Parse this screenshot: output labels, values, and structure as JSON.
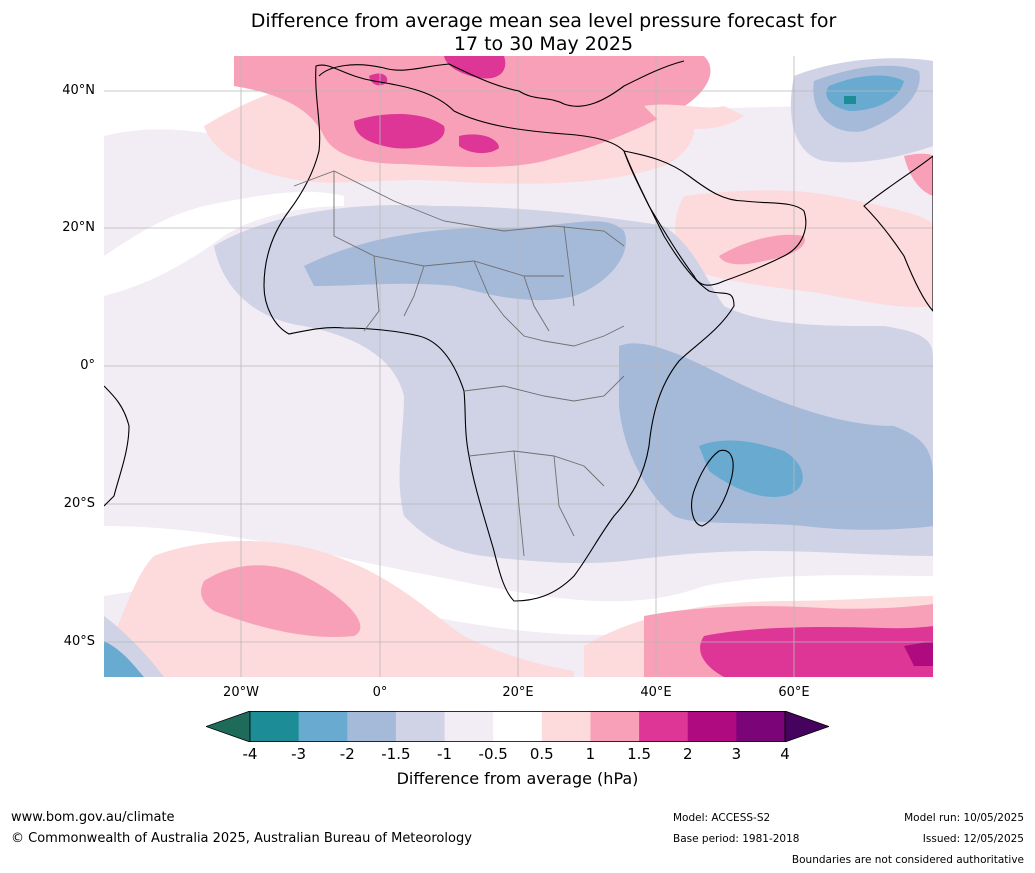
{
  "title_line1": "Difference from average mean sea level pressure forecast for",
  "title_line2": "17 to 30 May 2025",
  "lat_labels": [
    "40°N",
    "20°N",
    "0°",
    "20°S",
    "40°S"
  ],
  "lon_labels": [
    "20°W",
    "0°",
    "20°E",
    "40°E",
    "60°E"
  ],
  "colorbar": {
    "ticks": [
      "-4",
      "-3",
      "-2",
      "-1.5",
      "-1",
      "-0.5",
      "0.5",
      "1",
      "1.5",
      "2",
      "3",
      "4"
    ],
    "colors": [
      "#1e6b5c",
      "#1c8c96",
      "#68aad0",
      "#a5b9d8",
      "#d0d2e6",
      "#f2ecf4",
      "#ffffff",
      "#fddbdd",
      "#f8a0b8",
      "#dd3696",
      "#af0a80",
      "#7a0478",
      "#45035e"
    ],
    "label": "Difference from average (hPa)"
  },
  "footer": {
    "url": "www.bom.gov.au/climate",
    "copyright": "© Commonwealth of Australia 2025, Australian Bureau of Meteorology",
    "model": "Model: ACCESS-S2",
    "base_period": "Base period: 1981-2018",
    "model_run": "Model run: 10/05/2025",
    "issued": "Issued: 12/05/2025",
    "disclaimer": "Boundaries are not considered authoritative"
  },
  "map": {
    "lon_range": [
      -40,
      80
    ],
    "lat_range": [
      -45,
      45
    ],
    "graticule_lons": [
      -20,
      0,
      20,
      40,
      60
    ],
    "graticule_lats": [
      40,
      20,
      0,
      -20,
      -40
    ]
  }
}
